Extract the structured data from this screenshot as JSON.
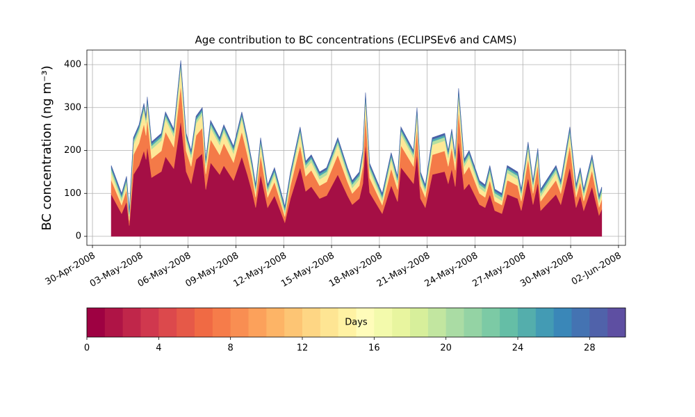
{
  "chart_data": {
    "type": "stacked_area",
    "title": "Age contribution to BC concentrations (ECLIPSEv6 and CAMS)",
    "ylabel": "BC concentration (ng m⁻³)",
    "x": [
      1.18,
      1.83,
      2.14,
      2.31,
      2.57,
      2.92,
      3.23,
      3.36,
      3.44,
      3.71,
      4.32,
      4.58,
      5.1,
      5.54,
      5.88,
      6.19,
      6.5,
      6.89,
      7.11,
      7.41,
      7.98,
      8.24,
      8.85,
      9.37,
      9.72,
      10.03,
      10.24,
      10.55,
      10.99,
      11.42,
      11.64,
      12.07,
      12.42,
      13.03,
      13.38,
      13.73,
      14.25,
      14.69,
      15.39,
      16.0,
      16.3,
      16.74,
      16.96,
      17.13,
      17.39,
      18.18,
      18.74,
      19.14,
      19.35,
      20.14,
      20.36,
      20.58,
      20.88,
      21.32,
      22.1,
      22.32,
      22.54,
      22.76,
      22.97,
      23.32,
      23.63,
      24.28,
      24.63,
      24.93,
      25.24,
      25.68,
      26.02,
      26.68,
      26.9,
      27.33,
      27.64,
      27.94,
      28.12,
      29.08,
      29.38,
      29.95,
      30.34,
      30.6,
      30.82,
      31.34,
      31.78,
      31.95
    ],
    "series": [
      {
        "color": "#a50f45",
        "values": [
          98,
          53,
          81,
          25,
          144,
          165,
          200,
          179,
          210,
          137,
          151,
          186,
          158,
          270,
          151,
          123,
          179,
          193,
          109,
          172,
          144,
          165,
          130,
          186,
          144,
          102,
          67,
          144,
          67,
          95,
          74,
          32,
          88,
          161,
          105,
          116,
          88,
          95,
          144,
          95,
          74,
          88,
          123,
          217,
          102,
          53,
          119,
          81,
          161,
          123,
          193,
          88,
          67,
          144,
          151,
          123,
          158,
          116,
          224,
          109,
          123,
          74,
          67,
          98,
          60,
          53,
          98,
          88,
          60,
          137,
          74,
          126,
          60,
          98,
          74,
          161,
          67,
          95,
          60,
          116,
          49,
          63
        ]
      },
      {
        "color": "#f47a48",
        "values": [
          33,
          20,
          28,
          12,
          46,
          52,
          62,
          56,
          65,
          44,
          48,
          58,
          50,
          82,
          48,
          40,
          56,
          60,
          36,
          54,
          46,
          52,
          42,
          58,
          46,
          34,
          24,
          46,
          24,
          32,
          26,
          14,
          30,
          51,
          35,
          38,
          30,
          32,
          46,
          32,
          26,
          30,
          40,
          67,
          34,
          20,
          39,
          28,
          51,
          40,
          60,
          30,
          24,
          46,
          48,
          40,
          50,
          38,
          69,
          36,
          40,
          26,
          24,
          33,
          22,
          20,
          33,
          30,
          22,
          44,
          26,
          41,
          22,
          33,
          26,
          51,
          24,
          32,
          22,
          38,
          19,
          23
        ]
      },
      {
        "color": "#fee897",
        "values": [
          17,
          10,
          14,
          6,
          23,
          26,
          31,
          28,
          33,
          22,
          24,
          29,
          25,
          41,
          24,
          20,
          28,
          30,
          18,
          27,
          23,
          26,
          21,
          29,
          23,
          17,
          12,
          23,
          12,
          16,
          13,
          7,
          15,
          26,
          18,
          19,
          15,
          16,
          23,
          16,
          13,
          15,
          20,
          34,
          17,
          10,
          20,
          14,
          26,
          20,
          30,
          15,
          12,
          23,
          24,
          20,
          25,
          19,
          35,
          18,
          20,
          13,
          12,
          17,
          11,
          10,
          17,
          15,
          11,
          22,
          13,
          21,
          11,
          17,
          13,
          26,
          12,
          16,
          11,
          19,
          10,
          12
        ]
      },
      {
        "color": "#b5e0a0",
        "values": [
          8,
          8,
          8,
          8,
          8,
          8,
          8,
          8,
          8,
          8,
          8,
          8,
          8,
          8,
          8,
          8,
          8,
          8,
          8,
          8,
          8,
          8,
          8,
          8,
          8,
          8,
          8,
          8,
          8,
          8,
          8,
          8,
          8,
          8,
          8,
          8,
          8,
          8,
          8,
          8,
          8,
          8,
          8,
          8,
          8,
          8,
          8,
          8,
          8,
          8,
          8,
          8,
          8,
          8,
          8,
          8,
          8,
          8,
          8,
          8,
          8,
          8,
          8,
          8,
          8,
          8,
          8,
          8,
          8,
          8,
          8,
          8,
          8,
          8,
          8,
          8,
          8,
          8,
          8,
          8,
          8,
          8
        ]
      },
      {
        "color": "#4fa9b2",
        "values": [
          5,
          5,
          5,
          5,
          5,
          5,
          5,
          5,
          5,
          5,
          5,
          5,
          5,
          5,
          5,
          5,
          5,
          5,
          5,
          5,
          5,
          5,
          5,
          5,
          5,
          5,
          5,
          5,
          5,
          5,
          5,
          5,
          5,
          5,
          5,
          5,
          5,
          5,
          5,
          5,
          5,
          5,
          5,
          5,
          5,
          5,
          5,
          5,
          5,
          5,
          5,
          5,
          5,
          5,
          5,
          5,
          5,
          5,
          5,
          5,
          5,
          5,
          5,
          5,
          5,
          5,
          5,
          5,
          5,
          5,
          5,
          5,
          5,
          5,
          5,
          5,
          5,
          5,
          5,
          5,
          5,
          5
        ]
      },
      {
        "color": "#4a62a8",
        "values": [
          4,
          4,
          4,
          4,
          4,
          4,
          4,
          4,
          4,
          4,
          4,
          4,
          4,
          4,
          4,
          4,
          4,
          4,
          4,
          4,
          4,
          4,
          4,
          4,
          4,
          4,
          4,
          4,
          4,
          4,
          4,
          4,
          4,
          4,
          4,
          4,
          4,
          4,
          4,
          4,
          4,
          4,
          4,
          4,
          4,
          4,
          4,
          4,
          4,
          4,
          4,
          4,
          4,
          4,
          4,
          4,
          4,
          4,
          4,
          4,
          4,
          4,
          4,
          4,
          4,
          4,
          4,
          4,
          4,
          4,
          4,
          4,
          4,
          4,
          4,
          4,
          4,
          4,
          4,
          4,
          4,
          4
        ]
      }
    ],
    "xlim": [
      -0.35,
      33.44
    ],
    "xticks": [
      {
        "value": 0,
        "label": "30-Apr-2008"
      },
      {
        "value": 3,
        "label": "03-May-2008"
      },
      {
        "value": 6,
        "label": "06-May-2008"
      },
      {
        "value": 9,
        "label": "09-May-2008"
      },
      {
        "value": 12,
        "label": "12-May-2008"
      },
      {
        "value": 15,
        "label": "15-May-2008"
      },
      {
        "value": 18,
        "label": "18-May-2008"
      },
      {
        "value": 21,
        "label": "21-May-2008"
      },
      {
        "value": 24,
        "label": "24-May-2008"
      },
      {
        "value": 27,
        "label": "27-May-2008"
      },
      {
        "value": 30,
        "label": "30-May-2008"
      },
      {
        "value": 33,
        "label": "02-Jun-2008"
      }
    ],
    "ylim": [
      -21,
      434
    ],
    "yticks": [
      0,
      100,
      200,
      300,
      400
    ],
    "grid": true,
    "colorbar": {
      "label": "Days",
      "lim": [
        0,
        30
      ],
      "ticks": [
        0,
        4,
        8,
        12,
        16,
        20,
        24,
        28
      ],
      "colors": [
        "#9e0142",
        "#af1446",
        "#c0264a",
        "#d0384e",
        "#dc494c",
        "#e65948",
        "#f06a44",
        "#f67c4a",
        "#f98e52",
        "#fca15b",
        "#fdb466",
        "#fdc574",
        "#fed684",
        "#fee593",
        "#fff2a3",
        "#fffcba",
        "#f3faac",
        "#e8f59f",
        "#d7ef9b",
        "#c2e6a0",
        "#aadca4",
        "#94d3a4",
        "#7ccaa5",
        "#65bea6",
        "#54aeac",
        "#439bb4",
        "#3a87b8",
        "#4473b2",
        "#5062aa",
        "#5e4fa2"
      ]
    }
  }
}
